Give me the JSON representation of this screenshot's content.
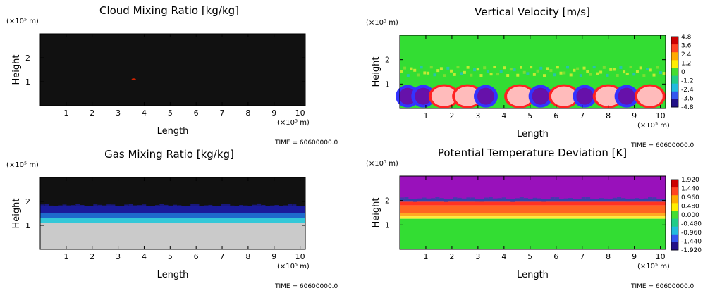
{
  "chart_data": [
    {
      "type": "heatmap",
      "title": "Cloud Mixing Ratio [kg/kg]",
      "xlabel": "Length",
      "ylabel": "Height",
      "x_unit": "(×10⁵ m)",
      "y_unit": "(×10⁵ m)",
      "x_ticks": [
        1,
        2,
        3,
        4,
        5,
        6,
        7,
        8,
        9,
        10
      ],
      "y_ticks": [
        1,
        2
      ],
      "xlim": [
        0,
        10.2
      ],
      "ylim": [
        0,
        3
      ],
      "colorbar": [],
      "field": {
        "background": "#111111",
        "spots": [
          {
            "x": 3.6,
            "y": 1.1,
            "color": "#cc2200"
          }
        ]
      },
      "time_label": "TIME = 60600000.0"
    },
    {
      "type": "heatmap",
      "title": "Vertical Velocity [m/s]",
      "xlabel": "Length",
      "ylabel": "Height",
      "x_unit": "(×10⁵ m)",
      "y_unit": "(×10⁵ m)",
      "x_ticks": [
        1,
        2,
        3,
        4,
        5,
        6,
        7,
        8,
        9,
        10
      ],
      "y_ticks": [
        1,
        2
      ],
      "xlim": [
        0,
        10.2
      ],
      "ylim": [
        0,
        3
      ],
      "colorbar": [
        "4.8",
        "3.6",
        "2.4",
        "1.2",
        "0",
        "-1.2",
        "-2.4",
        "-3.6",
        "-4.8"
      ],
      "colors": [
        "#cc0000",
        "#ff4422",
        "#ffaa00",
        "#ffee00",
        "#44dd33",
        "#22cc88",
        "#22bbdd",
        "#3355ee",
        "#221188"
      ],
      "field": {
        "background": "#33dd33",
        "cells": [
          {
            "x": 0.3,
            "up": false
          },
          {
            "x": 0.9,
            "up": false
          },
          {
            "x": 1.7,
            "up": true
          },
          {
            "x": 2.6,
            "up": true
          },
          {
            "x": 3.3,
            "up": false
          },
          {
            "x": 4.6,
            "up": true
          },
          {
            "x": 5.4,
            "up": false
          },
          {
            "x": 6.3,
            "up": true
          },
          {
            "x": 7.1,
            "up": false
          },
          {
            "x": 8.0,
            "up": true
          },
          {
            "x": 8.7,
            "up": false
          },
          {
            "x": 9.6,
            "up": true
          }
        ]
      },
      "time_label": "TIME = 60600000.0"
    },
    {
      "type": "heatmap",
      "title": "Gas Mixing Ratio [kg/kg]",
      "xlabel": "Length",
      "ylabel": "Height",
      "x_unit": "(×10⁵ m)",
      "y_unit": "(×10⁵ m)",
      "x_ticks": [
        1,
        2,
        3,
        4,
        5,
        6,
        7,
        8,
        9,
        10
      ],
      "y_ticks": [
        1,
        2
      ],
      "xlim": [
        0,
        10.2
      ],
      "ylim": [
        0,
        3
      ],
      "colorbar": [],
      "field": {
        "layers": [
          {
            "y0": 1.8,
            "y1": 3.0,
            "color": "#111111"
          },
          {
            "y0": 1.5,
            "y1": 1.8,
            "color": "#1a1a9a"
          },
          {
            "y0": 1.3,
            "y1": 1.5,
            "color": "#1e6acc"
          },
          {
            "y0": 1.1,
            "y1": 1.3,
            "color": "#33c8d8"
          },
          {
            "y0": 0.0,
            "y1": 1.1,
            "color": "#cacaca"
          }
        ]
      },
      "time_label": "TIME = 60600000.0"
    },
    {
      "type": "heatmap",
      "title": "Potential Temperature Deviation [K]",
      "xlabel": "Length",
      "ylabel": "Height",
      "x_unit": "(×10⁵ m)",
      "y_unit": "(×10⁵ m)",
      "x_ticks": [
        1,
        2,
        3,
        4,
        5,
        6,
        7,
        8,
        9,
        10
      ],
      "y_ticks": [
        1,
        2
      ],
      "xlim": [
        0,
        10.2
      ],
      "ylim": [
        0,
        3
      ],
      "colorbar": [
        "1.920",
        "1.440",
        "0.960",
        "0.480",
        "0.000",
        "-0.480",
        "-0.960",
        "-1.440",
        "-1.920"
      ],
      "colors": [
        "#cc0000",
        "#ff4422",
        "#ffaa00",
        "#ffee00",
        "#44dd33",
        "#22cc88",
        "#22bbdd",
        "#3355ee",
        "#221188"
      ],
      "field": {
        "layers": [
          {
            "y0": 2.05,
            "y1": 3.0,
            "color": "#9911bb"
          },
          {
            "y0": 1.95,
            "y1": 2.05,
            "color": "#3344aa"
          },
          {
            "y0": 1.8,
            "y1": 1.95,
            "color": "#ff3322"
          },
          {
            "y0": 1.5,
            "y1": 1.8,
            "color": "#ff6622"
          },
          {
            "y0": 1.35,
            "y1": 1.5,
            "color": "#ffaa22"
          },
          {
            "y0": 1.25,
            "y1": 1.35,
            "color": "#ffee33"
          },
          {
            "y0": 0.0,
            "y1": 1.25,
            "color": "#33dd33"
          }
        ]
      },
      "time_label": "TIME = 60600000.0"
    }
  ]
}
